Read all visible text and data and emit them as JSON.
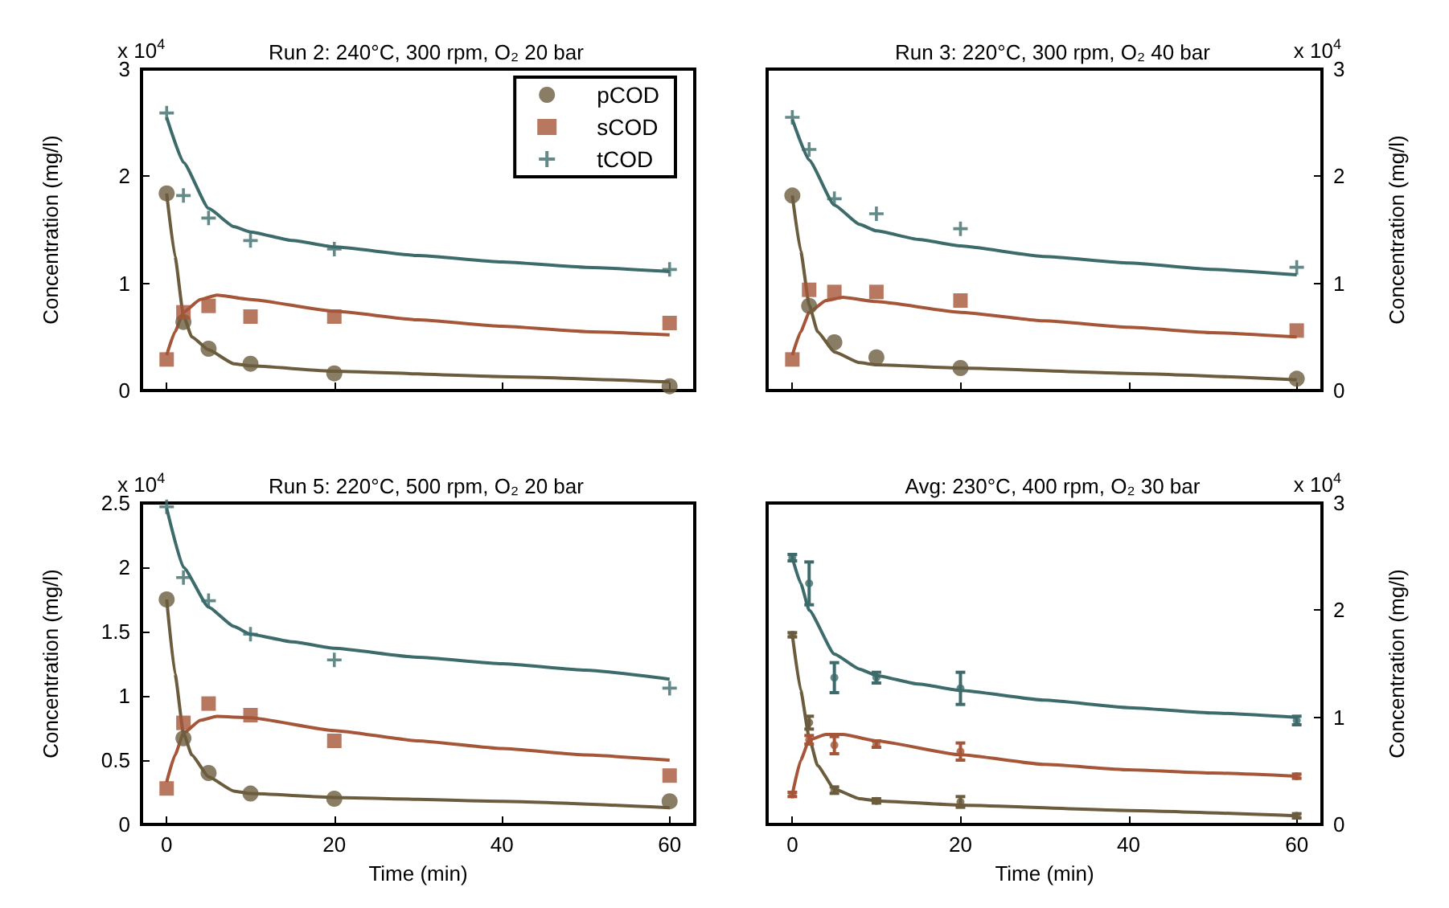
{
  "chart_data": [
    {
      "type": "scatter",
      "title": "Run 2: 240°C, 300 rpm, O₂ 20 bar",
      "ylabel": "Concentration (mg/l)",
      "annotations": [
        "x 10$^{4}$"
      ],
      "x": [
        0,
        2,
        5,
        10,
        20,
        60
      ],
      "xlim": [
        -3,
        63
      ],
      "xticks": [
        0,
        20,
        40,
        60
      ],
      "ylim": [
        0,
        3
      ],
      "yticks": [
        0,
        1,
        2,
        3
      ],
      "tick_labels": "y",
      "legend": "top right",
      "grid": false,
      "series": [
        {
          "name": "pCOD",
          "color": "#6b5c3e",
          "marker": "circle",
          "values": [
            1.84,
            0.64,
            0.39,
            0.25,
            0.16,
            0.04
          ]
        },
        {
          "name": "sCOD",
          "color": "#a65638",
          "marker": "square",
          "values": [
            0.29,
            0.73,
            0.79,
            0.69,
            0.69,
            0.63
          ]
        },
        {
          "name": "tCOD",
          "color": "#3d6b6b",
          "marker": "cross",
          "values": [
            2.59,
            1.82,
            1.61,
            1.4,
            1.32,
            1.13
          ]
        },
        {
          "type": "line",
          "color": "#6b5c3e",
          "x": [
            0,
            1,
            2,
            3,
            5,
            8,
            10,
            20,
            40,
            60
          ],
          "values": [
            1.84,
            1.25,
            0.7,
            0.5,
            0.38,
            0.25,
            0.23,
            0.18,
            0.13,
            0.08
          ]
        },
        {
          "type": "line",
          "color": "#a65638",
          "x": [
            0,
            1,
            2,
            4,
            6,
            10,
            20,
            30,
            40,
            50,
            60
          ],
          "values": [
            0.33,
            0.55,
            0.73,
            0.85,
            0.89,
            0.85,
            0.74,
            0.66,
            0.6,
            0.55,
            0.52
          ]
        },
        {
          "type": "line",
          "color": "#3d6b6b",
          "x": [
            0,
            2,
            5,
            8,
            10,
            15,
            20,
            30,
            40,
            50,
            60
          ],
          "values": [
            2.55,
            2.13,
            1.7,
            1.53,
            1.48,
            1.4,
            1.34,
            1.26,
            1.2,
            1.15,
            1.11
          ]
        }
      ]
    },
    {
      "type": "scatter",
      "title": "Run 3: 220°C, 300 rpm, O₂ 40 bar",
      "y2label": "Concentration (mg/l)",
      "annotations": [
        "x 10$^{4}$"
      ],
      "x": [
        0,
        2,
        5,
        10,
        20,
        60
      ],
      "xlim": [
        -3,
        63
      ],
      "xticks": [
        0,
        20,
        40,
        60
      ],
      "y2lim": [
        0,
        3
      ],
      "y2ticks": [
        0,
        1,
        2,
        3
      ],
      "tick_labels": "y",
      "grid": false,
      "series": [
        {
          "color": "#6b5c3e",
          "marker": "circle",
          "axis": "y2",
          "values": [
            1.82,
            0.79,
            0.45,
            0.31,
            0.21,
            0.11
          ]
        },
        {
          "color": "#a65638",
          "marker": "square",
          "axis": "y2",
          "values": [
            0.29,
            0.94,
            0.92,
            0.92,
            0.84,
            0.56
          ]
        },
        {
          "color": "#3d6b6b",
          "marker": "cross",
          "axis": "y2",
          "values": [
            2.55,
            2.25,
            1.79,
            1.65,
            1.51,
            1.15
          ]
        },
        {
          "type": "line",
          "color": "#6b5c3e",
          "axis": "y2",
          "x": [
            0,
            1,
            2,
            3,
            5,
            8,
            10,
            20,
            40,
            60
          ],
          "values": [
            1.82,
            1.3,
            0.8,
            0.55,
            0.36,
            0.26,
            0.24,
            0.21,
            0.16,
            0.1
          ]
        },
        {
          "type": "line",
          "color": "#a65638",
          "axis": "y2",
          "x": [
            0,
            1,
            2,
            4,
            6,
            10,
            20,
            30,
            40,
            50,
            60
          ],
          "values": [
            0.33,
            0.55,
            0.73,
            0.84,
            0.87,
            0.83,
            0.73,
            0.65,
            0.59,
            0.54,
            0.5
          ]
        },
        {
          "type": "line",
          "color": "#3d6b6b",
          "axis": "y2",
          "x": [
            0,
            2,
            5,
            8,
            10,
            15,
            20,
            30,
            40,
            50,
            60
          ],
          "values": [
            2.53,
            2.15,
            1.73,
            1.55,
            1.49,
            1.41,
            1.35,
            1.25,
            1.19,
            1.13,
            1.08
          ]
        }
      ]
    },
    {
      "type": "scatter",
      "title": "Run 5: 220°C, 500 rpm, O₂ 20 bar",
      "xlabel": "Time (min)",
      "ylabel": "Concentration (mg/l)",
      "annotations": [
        "x 10$^{4}$"
      ],
      "x": [
        0,
        2,
        5,
        10,
        20,
        60
      ],
      "xlim": [
        -3,
        63
      ],
      "xticks": [
        0,
        20,
        40,
        60
      ],
      "ylim": [
        0,
        2.5
      ],
      "yticks": [
        0,
        0.5,
        1,
        1.5,
        2,
        2.5
      ],
      "grid": false,
      "series": [
        {
          "color": "#6b5c3e",
          "marker": "circle",
          "values": [
            1.75,
            0.67,
            0.4,
            0.24,
            0.2,
            0.18
          ]
        },
        {
          "color": "#a65638",
          "marker": "square",
          "values": [
            0.28,
            0.79,
            0.94,
            0.85,
            0.65,
            0.38
          ]
        },
        {
          "color": "#3d6b6b",
          "marker": "cross",
          "values": [
            2.47,
            1.92,
            1.74,
            1.48,
            1.28,
            1.06
          ]
        },
        {
          "type": "line",
          "color": "#6b5c3e",
          "x": [
            0,
            1,
            2,
            3,
            5,
            8,
            10,
            20,
            40,
            60
          ],
          "values": [
            1.75,
            1.17,
            0.71,
            0.54,
            0.37,
            0.26,
            0.24,
            0.21,
            0.18,
            0.13
          ]
        },
        {
          "type": "line",
          "color": "#a65638",
          "x": [
            0,
            1,
            2,
            4,
            6,
            10,
            20,
            30,
            40,
            50,
            60
          ],
          "values": [
            0.33,
            0.54,
            0.71,
            0.81,
            0.84,
            0.83,
            0.73,
            0.65,
            0.59,
            0.54,
            0.5
          ]
        },
        {
          "type": "line",
          "color": "#3d6b6b",
          "x": [
            0,
            2,
            5,
            8,
            10,
            15,
            20,
            30,
            40,
            50,
            60
          ],
          "values": [
            2.46,
            2.0,
            1.69,
            1.54,
            1.48,
            1.42,
            1.37,
            1.3,
            1.25,
            1.2,
            1.13
          ]
        }
      ]
    },
    {
      "type": "scatter",
      "title": "Avg: 230°C, 400 rpm, O₂ 30 bar",
      "xlabel": "Time (min)",
      "y2label": "Concentration (mg/l)",
      "annotations": [
        "x 10$^{4}$"
      ],
      "x": [
        0,
        2,
        5,
        10,
        20,
        60
      ],
      "xlim": [
        -3,
        63
      ],
      "xticks": [
        0,
        20,
        40,
        60
      ],
      "y2lim": [
        0,
        3
      ],
      "y2ticks": [
        0,
        1,
        2,
        3
      ],
      "grid": false,
      "series": [
        {
          "color": "#6b5c3e",
          "marker": "circle",
          "axis": "y2",
          "values": [
            1.77,
            0.95,
            0.32,
            0.22,
            0.21,
            0.08
          ],
          "errors": [
            0.02,
            0.06,
            0.03,
            0.02,
            0.05,
            0.02
          ]
        },
        {
          "color": "#a65638",
          "marker": "circle",
          "axis": "y2",
          "values": [
            0.28,
            0.79,
            0.74,
            0.75,
            0.68,
            0.45
          ],
          "errors": [
            0.02,
            0.04,
            0.08,
            0.03,
            0.08,
            0.02
          ]
        },
        {
          "color": "#3d6b6b",
          "marker": "circle",
          "axis": "y2",
          "values": [
            2.49,
            2.25,
            1.37,
            1.37,
            1.27,
            0.97
          ],
          "errors": [
            0.03,
            0.2,
            0.14,
            0.05,
            0.15,
            0.04
          ]
        },
        {
          "type": "line",
          "color": "#6b5c3e",
          "axis": "y2",
          "x": [
            0,
            1,
            2,
            3,
            5,
            8,
            10,
            20,
            40,
            60
          ],
          "values": [
            1.77,
            1.25,
            0.81,
            0.55,
            0.33,
            0.24,
            0.22,
            0.18,
            0.13,
            0.08
          ]
        },
        {
          "type": "line",
          "color": "#a65638",
          "axis": "y2",
          "x": [
            0,
            1,
            2,
            4,
            6,
            10,
            20,
            30,
            40,
            50,
            60
          ],
          "values": [
            0.28,
            0.6,
            0.79,
            0.84,
            0.84,
            0.78,
            0.65,
            0.56,
            0.51,
            0.48,
            0.45
          ]
        },
        {
          "type": "line",
          "color": "#3d6b6b",
          "axis": "y2",
          "x": [
            0,
            1,
            2,
            5,
            8,
            10,
            15,
            20,
            30,
            40,
            50,
            60
          ],
          "values": [
            2.49,
            2.25,
            2.0,
            1.59,
            1.45,
            1.39,
            1.31,
            1.25,
            1.16,
            1.09,
            1.04,
            1.0
          ]
        }
      ]
    }
  ]
}
